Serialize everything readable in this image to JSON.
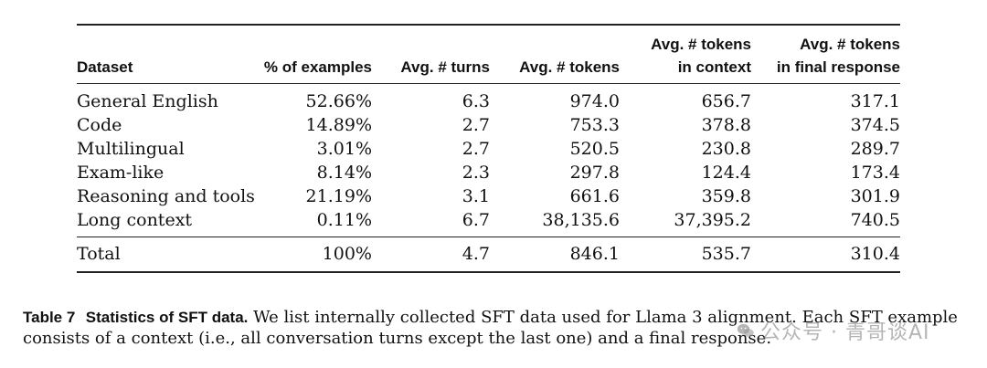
{
  "table": {
    "headers": [
      {
        "line1": "",
        "line2": "Dataset"
      },
      {
        "line1": "",
        "line2": "% of examples"
      },
      {
        "line1": "",
        "line2": "Avg. # turns"
      },
      {
        "line1": "",
        "line2": "Avg. # tokens"
      },
      {
        "line1": "Avg. # tokens",
        "line2": "in context"
      },
      {
        "line1": "Avg. # tokens",
        "line2": "in final response"
      }
    ],
    "rows": [
      [
        "General English",
        "52.66%",
        "6.3",
        "974.0",
        "656.7",
        "317.1"
      ],
      [
        "Code",
        "14.89%",
        "2.7",
        "753.3",
        "378.8",
        "374.5"
      ],
      [
        "Multilingual",
        "3.01%",
        "2.7",
        "520.5",
        "230.8",
        "289.7"
      ],
      [
        "Exam-like",
        "8.14%",
        "2.3",
        "297.8",
        "124.4",
        "173.4"
      ],
      [
        "Reasoning and tools",
        "21.19%",
        "3.1",
        "661.6",
        "359.8",
        "301.9"
      ],
      [
        "Long context",
        "0.11%",
        "6.7",
        "38,135.6",
        "37,395.2",
        "740.5"
      ]
    ],
    "total": [
      "Total",
      "100%",
      "4.7",
      "846.1",
      "535.7",
      "310.4"
    ]
  },
  "caption": {
    "label": "Table 7",
    "title": "Statistics of SFT data.",
    "text": " We list internally collected SFT data used for Llama 3 alignment. Each SFT example consists of a context (i.e., all conversation turns except the last one) and a final response."
  },
  "watermark": {
    "text": "公众号 · 青哥谈AI",
    "icon": "wechat-icon"
  }
}
